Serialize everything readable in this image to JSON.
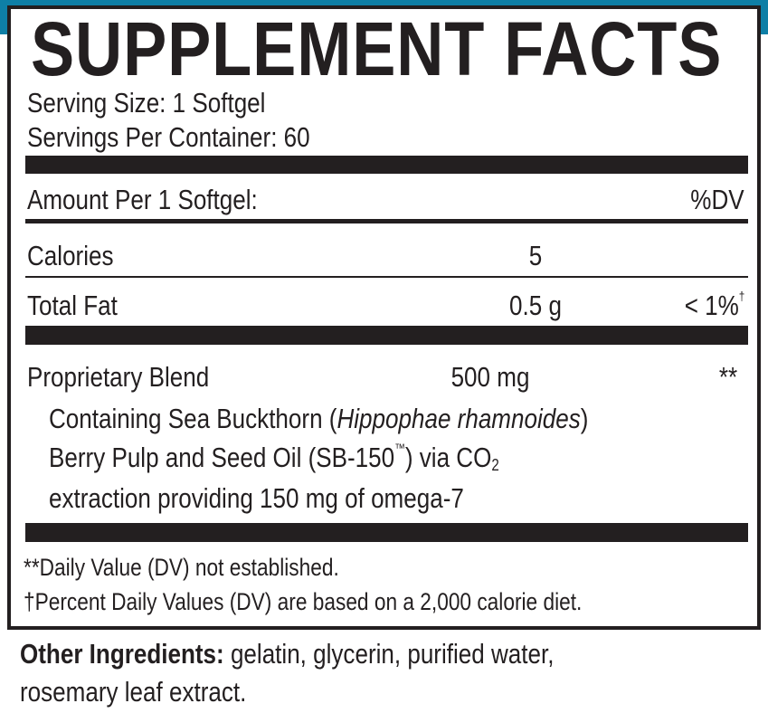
{
  "brand_color": "#0e7fa6",
  "title": "SUPPLEMENT FACTS",
  "serving_size": "Serving Size: 1 Softgel",
  "servings_per_container": "Servings Per Container: 60",
  "header": {
    "amount_label": "Amount Per 1 Softgel:",
    "dv_label": "%DV"
  },
  "rows": [
    {
      "name": "Calories",
      "amount": "5",
      "dv": ""
    },
    {
      "name": "Total Fat",
      "amount": "0.5 g",
      "dv": "< 1%",
      "dv_mark": "†"
    }
  ],
  "blend": {
    "name": "Proprietary Blend",
    "amount": "500 mg",
    "dv": "**",
    "line1_pre": "Containing Sea Buckthorn (",
    "line1_italic": "Hippophae rhamnoides",
    "line1_post": ")",
    "line2_pre": "Berry Pulp and Seed Oil (SB-150",
    "line2_tm": "™",
    "line2_mid": ") via CO",
    "line2_sub": "2",
    "line3": "extraction providing 150 mg of omega-7"
  },
  "footnotes": [
    "**Daily Value (DV) not established.",
    "†Percent Daily Values (DV) are based on a 2,000 calorie diet."
  ],
  "other_ingredients": {
    "label": "Other Ingredients:",
    "line1": " gelatin, glycerin, purified water,",
    "line2": "rosemary leaf extract."
  }
}
